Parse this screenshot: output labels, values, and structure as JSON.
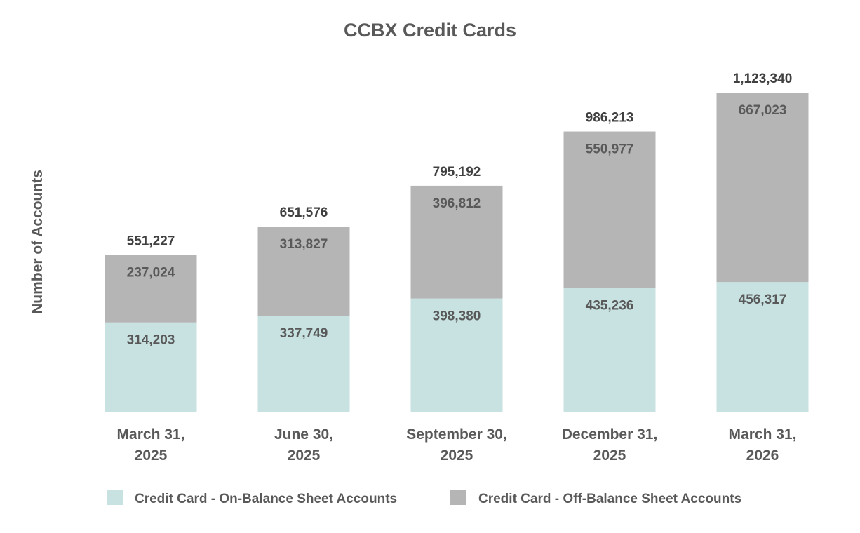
{
  "chart_data": {
    "type": "bar",
    "stacked": true,
    "title": "CCBX Credit Cards",
    "ylabel": "Number of Accounts",
    "xlabel": "",
    "categories": [
      [
        "March 31,",
        "2025"
      ],
      [
        "June 30,",
        "2025"
      ],
      [
        "September 30,",
        "2025"
      ],
      [
        "December 31,",
        "2025"
      ],
      [
        "March 31,",
        "2026"
      ]
    ],
    "series": [
      {
        "name": "Credit Card -  On-Balance Sheet Accounts",
        "color": "#c8e2e2",
        "values": [
          314203,
          337749,
          398380,
          435236,
          456317
        ],
        "labels": [
          "314,203",
          "337,749",
          "398,380",
          "435,236",
          "456,317"
        ]
      },
      {
        "name": "Credit Card -  Off-Balance Sheet Accounts",
        "color": "#b5b5b5",
        "values": [
          237024,
          313827,
          396812,
          550977,
          667023
        ],
        "labels": [
          "237,024",
          "313,827",
          "396,812",
          "550,977",
          "667,023"
        ]
      }
    ],
    "totals": [
      551227,
      651576,
      795192,
      986213,
      1123340
    ],
    "total_labels": [
      "551,227",
      "651,576",
      "795,192",
      "986,213",
      "1,123,340"
    ],
    "ylim": [
      0,
      1123340
    ],
    "grid": false,
    "legend_position": "bottom"
  }
}
